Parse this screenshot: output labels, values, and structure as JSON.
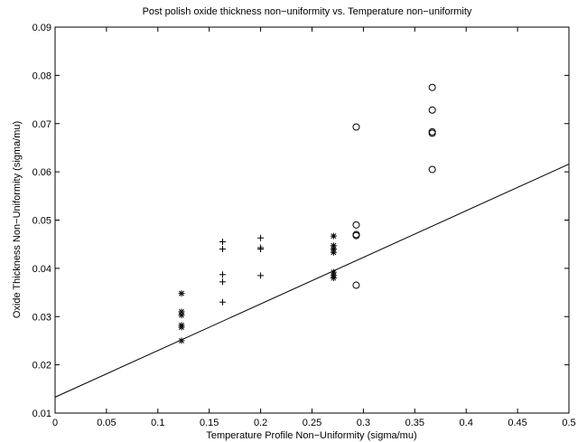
{
  "chart_data": {
    "type": "scatter",
    "title": "Post polish oxide thickness non−uniformity vs. Temperature non−uniformity",
    "xlabel": "Temperature Profile Non−Uniformity (sigma/mu)",
    "ylabel": "Oxide Thickness Non−Uniformity (sigma/mu)",
    "xlim": [
      0,
      0.5
    ],
    "ylim": [
      0.01,
      0.09
    ],
    "xticks": [
      0,
      0.05,
      0.1,
      0.15,
      0.2,
      0.25,
      0.3,
      0.35,
      0.4,
      0.45,
      0.5
    ],
    "xtick_labels": [
      "0",
      "0.05",
      "0.1",
      "0.15",
      "0.2",
      "0.25",
      "0.3",
      "0.35",
      "0.4",
      "0.45",
      "0.5"
    ],
    "yticks": [
      0.01,
      0.02,
      0.03,
      0.04,
      0.05,
      0.06,
      0.07,
      0.08,
      0.09
    ],
    "ytick_labels": [
      "0.01",
      "0.02",
      "0.03",
      "0.04",
      "0.05",
      "0.06",
      "0.07",
      "0.08",
      "0.09"
    ],
    "grid": false,
    "series": [
      {
        "marker": "asterisk",
        "points": [
          [
            0.123,
            0.0348
          ],
          [
            0.123,
            0.031
          ],
          [
            0.123,
            0.0303
          ],
          [
            0.123,
            0.0282
          ],
          [
            0.123,
            0.0278
          ],
          [
            0.123,
            0.025
          ],
          [
            0.271,
            0.0467
          ],
          [
            0.271,
            0.0447
          ],
          [
            0.271,
            0.044
          ],
          [
            0.271,
            0.0433
          ],
          [
            0.271,
            0.0392
          ],
          [
            0.271,
            0.0385
          ],
          [
            0.271,
            0.038
          ]
        ]
      },
      {
        "marker": "plus",
        "points": [
          [
            0.163,
            0.0455
          ],
          [
            0.163,
            0.044
          ],
          [
            0.163,
            0.0387
          ],
          [
            0.163,
            0.0372
          ],
          [
            0.163,
            0.033
          ],
          [
            0.2,
            0.0463
          ],
          [
            0.2,
            0.0443
          ],
          [
            0.2,
            0.044
          ],
          [
            0.2,
            0.0385
          ]
        ]
      },
      {
        "marker": "circle",
        "points": [
          [
            0.293,
            0.0693
          ],
          [
            0.293,
            0.049
          ],
          [
            0.293,
            0.047
          ],
          [
            0.293,
            0.0468
          ],
          [
            0.293,
            0.0365
          ],
          [
            0.367,
            0.0775
          ],
          [
            0.367,
            0.0728
          ],
          [
            0.367,
            0.0683
          ],
          [
            0.367,
            0.068
          ],
          [
            0.367,
            0.0605
          ]
        ]
      }
    ],
    "fit_line": {
      "x": [
        0,
        0.5
      ],
      "y": [
        0.0133,
        0.0616
      ]
    }
  }
}
